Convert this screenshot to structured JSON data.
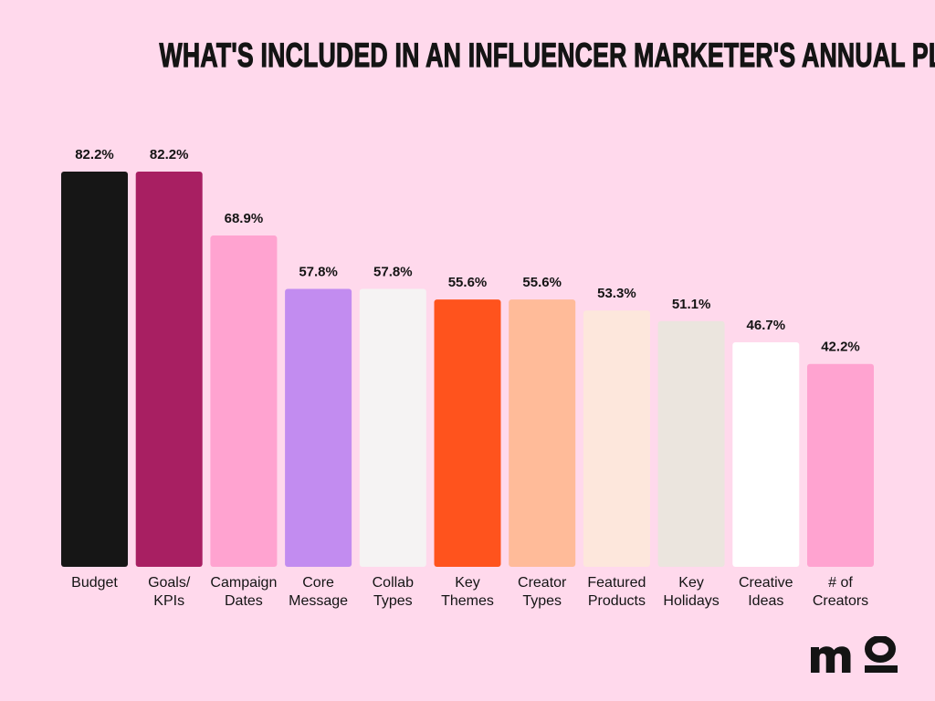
{
  "chart_data": {
    "type": "bar",
    "title": "WHAT'S INCLUDED IN AN INFLUENCER MARKETER'S ANNUAL PLAN",
    "categories": [
      [
        "Budget"
      ],
      [
        "Goals/",
        "KPIs"
      ],
      [
        "Campaign",
        "Dates"
      ],
      [
        "Core",
        "Message"
      ],
      [
        "Collab",
        "Types"
      ],
      [
        "Key",
        "Themes"
      ],
      [
        "Creator",
        "Types"
      ],
      [
        "Featured",
        "Products"
      ],
      [
        "Key",
        "Holidays"
      ],
      [
        "Creative",
        "Ideas"
      ],
      [
        "# of",
        "Creators"
      ]
    ],
    "values": [
      82.2,
      82.2,
      68.9,
      57.8,
      57.8,
      55.6,
      55.6,
      53.3,
      51.1,
      46.7,
      42.2
    ],
    "data_labels": [
      "82.2%",
      "82.2%",
      "68.9%",
      "57.8%",
      "57.8%",
      "55.6%",
      "55.6%",
      "53.3%",
      "51.1%",
      "46.7%",
      "42.2%"
    ],
    "colors": [
      "#161616",
      "#a81f62",
      "#ffa3d0",
      "#c28cf0",
      "#f5f3f3",
      "#ff531d",
      "#ffbb99",
      "#fde7dc",
      "#ebe5de",
      "#ffffff",
      "#ffa3d0"
    ],
    "xlabel": "",
    "ylabel": "",
    "ylim": [
      0,
      82.2
    ],
    "grid": false,
    "legend": "none"
  },
  "logo": {
    "text": "mo",
    "color": "#141414"
  },
  "background": "#ffd9ec"
}
